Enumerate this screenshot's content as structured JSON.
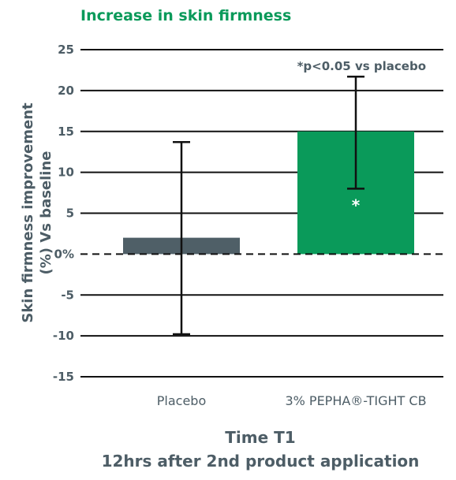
{
  "chart_data": {
    "type": "bar",
    "title": "Increase in skin firmness",
    "ylabel_line1": "Skin firmness improvement",
    "ylabel_line2": "(%) Vs baseline",
    "xlabel_line1": "Time T1",
    "xlabel_line2": "12hrs after 2nd product application",
    "ylim": [
      -15,
      25
    ],
    "yticks": [
      25,
      20,
      15,
      10,
      5,
      0,
      -5,
      -10,
      -15
    ],
    "ytick_labels": [
      "25",
      "20",
      "15",
      "10",
      "5",
      "0%",
      "-5",
      "-10",
      "-15"
    ],
    "grid": true,
    "baseline_style": "dashed",
    "categories": [
      "Placebo",
      "3% PEPHA®-TIGHT CB"
    ],
    "values": [
      2,
      15
    ],
    "error_bars": [
      {
        "low": -9.8,
        "high": 13.7
      },
      {
        "low": 8.0,
        "high": 21.7
      }
    ],
    "significance_marks": [
      "",
      "*"
    ],
    "annotation": "*p<0.05 vs placebo",
    "colors": {
      "placebo": "#4f5f67",
      "active": "#0a9a5a",
      "title": "#0a9a5a",
      "text": "#4d5d66"
    }
  }
}
